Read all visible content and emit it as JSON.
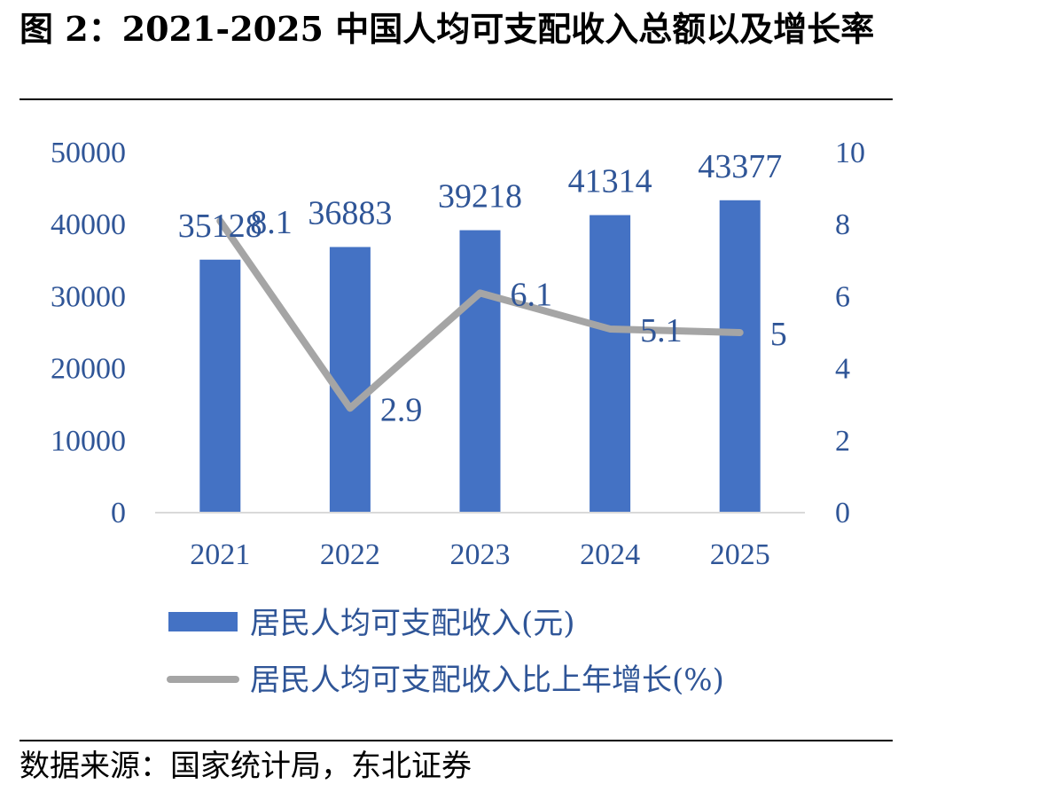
{
  "title": "图 2：2021-2025 中国人均可支配收入总额以及增长率",
  "source": "数据来源：国家统计局，东北证券",
  "colors": {
    "bar": "#4472C4",
    "line": "#A5A5A5",
    "text": "#2F5597"
  },
  "chart_data": {
    "type": "bar",
    "categories": [
      "2021",
      "2022",
      "2023",
      "2024",
      "2025"
    ],
    "series": [
      {
        "name": "居民人均可支配收入(元)",
        "type": "bar",
        "axis": "left",
        "values": [
          35128,
          36883,
          39218,
          41314,
          43377
        ],
        "labels": [
          "35128",
          "36883",
          "39218",
          "41314",
          "43377"
        ]
      },
      {
        "name": "居民人均可支配收入比上年增长(%)",
        "type": "line",
        "axis": "right",
        "values": [
          8.1,
          2.9,
          6.1,
          5.1,
          5
        ],
        "labels": [
          "8.1",
          "2.9",
          "6.1",
          "5.1",
          "5"
        ]
      }
    ],
    "ylim": [
      0,
      50000
    ],
    "y_ticks": [
      "0",
      "10000",
      "20000",
      "30000",
      "40000",
      "50000"
    ],
    "y2lim": [
      0,
      10
    ],
    "y2_ticks": [
      "0",
      "2",
      "4",
      "6",
      "8",
      "10"
    ],
    "grid": false,
    "legend": "bottom"
  }
}
